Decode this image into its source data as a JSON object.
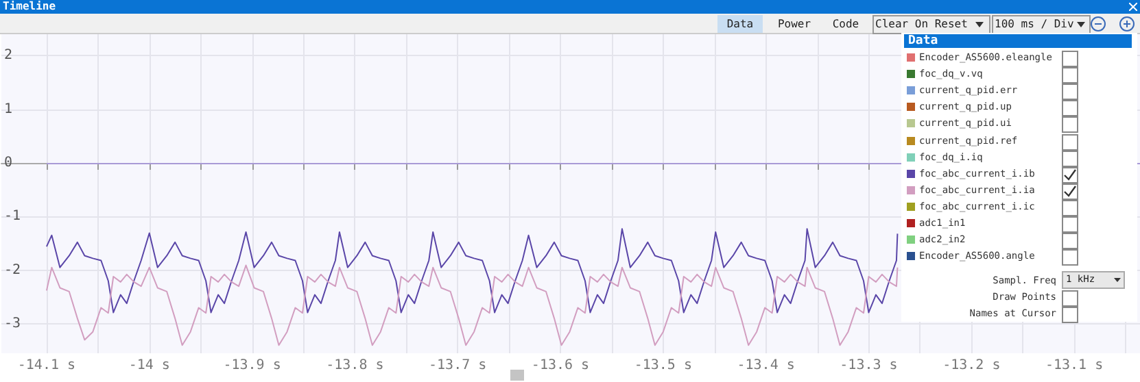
{
  "chart_data": {
    "type": "line",
    "title": "Timeline",
    "annotations": [
      "Data",
      "Power",
      "Code",
      "Clear On Reset",
      "100 ms / Div",
      "Data",
      "Sampl. Freq",
      "1 kHz",
      "Draw Points",
      "Names at Cursor"
    ],
    "x": [
      -14.1,
      -14.095,
      -14.087,
      -14.078,
      -14.07,
      -14.063,
      -14.055,
      -14.047,
      -14.04,
      -14.035,
      -14.028,
      -14.022,
      -14.015,
      -14.008,
      -14.0,
      -13.992,
      -13.983,
      -13.975,
      -13.968,
      -13.96,
      -13.952,
      -13.945,
      -13.94,
      -13.933,
      -13.927,
      -13.92,
      -13.913,
      -13.906,
      -13.898,
      -13.889,
      -13.881,
      -13.874,
      -13.866,
      -13.858,
      -13.851,
      -13.846,
      -13.839,
      -13.833,
      -13.826,
      -13.819,
      -13.815,
      -13.807,
      -13.798,
      -13.79,
      -13.783,
      -13.775,
      -13.767,
      -13.76,
      -13.755,
      -13.748,
      -13.742,
      -13.735,
      -13.728,
      -13.724,
      -13.716,
      -13.707,
      -13.699,
      -13.692,
      -13.684,
      -13.676,
      -13.669,
      -13.664,
      -13.657,
      -13.651,
      -13.644,
      -13.637,
      -13.631,
      -13.623,
      -13.614,
      -13.606,
      -13.599,
      -13.591,
      -13.583,
      -13.576,
      -13.571,
      -13.564,
      -13.558,
      -13.551,
      -13.544,
      -13.54,
      -13.532,
      -13.523,
      -13.515,
      -13.508,
      -13.5,
      -13.492,
      -13.485,
      -13.48,
      -13.473,
      -13.467,
      -13.46,
      -13.453,
      -13.449,
      -13.441,
      -13.432,
      -13.424,
      -13.417,
      -13.409,
      -13.401,
      -13.394,
      -13.389,
      -13.382,
      -13.376,
      -13.369,
      -13.362,
      -13.36,
      -13.352,
      -13.343,
      -13.335,
      -13.328,
      -13.32,
      -13.312,
      -13.305,
      -13.3,
      -13.293,
      -13.287,
      -13.28,
      -13.273,
      -13.272
    ],
    "series": [
      {
        "name": "Encoder_AS5600.eleangle",
        "color": "#e07070",
        "values": [
          null,
          null,
          null,
          null,
          null,
          null,
          null,
          null,
          null,
          null,
          null,
          null,
          null,
          null,
          null,
          null,
          null,
          null,
          null,
          null,
          null,
          null,
          null,
          null,
          null,
          null,
          null,
          null,
          null,
          null,
          null,
          null,
          null,
          null,
          null,
          null,
          null,
          null,
          null,
          null,
          null,
          null,
          null,
          null,
          null,
          null,
          null,
          null,
          null,
          null,
          null,
          null,
          null,
          null,
          null,
          null,
          null,
          null,
          null,
          null,
          null,
          null,
          null,
          null,
          null,
          null,
          null,
          null,
          null,
          null,
          null,
          null,
          null,
          null,
          null,
          null,
          null,
          null,
          null,
          null,
          null,
          null,
          null,
          null,
          null,
          null,
          null,
          null,
          null,
          null,
          null,
          null,
          null,
          null,
          null,
          null,
          null,
          null,
          null,
          null,
          null,
          null,
          null,
          null,
          null,
          null,
          null,
          null,
          null,
          null,
          null,
          null,
          null,
          null,
          null,
          null,
          null,
          null,
          null
        ]
      },
      {
        "name": "foc_dq_v.vq",
        "color": "#3a7a30",
        "values": [
          null,
          null,
          null,
          null,
          null,
          null,
          null,
          null,
          null,
          null,
          null,
          null,
          null,
          null,
          null,
          null,
          null,
          null,
          null,
          null,
          null,
          null,
          null,
          null,
          null,
          null,
          null,
          null,
          null,
          null,
          null,
          null,
          null,
          null,
          null,
          null,
          null,
          null,
          null,
          null,
          null,
          null,
          null,
          null,
          null,
          null,
          null,
          null,
          null,
          null,
          null,
          null,
          null,
          null,
          null,
          null,
          null,
          null,
          null,
          null,
          null,
          null,
          null,
          null,
          null,
          null,
          null,
          null,
          null,
          null,
          null,
          null,
          null,
          null,
          null,
          null,
          null,
          null,
          null,
          null,
          null,
          null,
          null,
          null,
          null,
          null,
          null,
          null,
          null,
          null,
          null,
          null,
          null,
          null,
          null,
          null,
          null,
          null,
          null,
          null,
          null,
          null,
          null,
          null,
          null,
          null,
          null,
          null,
          null,
          null,
          null,
          null,
          null,
          null,
          null,
          null,
          null,
          null,
          null
        ]
      },
      {
        "name": "current_q_pid.err",
        "color": "#7a9ed8",
        "values": [
          null,
          null,
          null,
          null,
          null,
          null,
          null,
          null,
          null,
          null,
          null,
          null,
          null,
          null,
          null,
          null,
          null,
          null,
          null,
          null,
          null,
          null,
          null,
          null,
          null,
          null,
          null,
          null,
          null,
          null,
          null,
          null,
          null,
          null,
          null,
          null,
          null,
          null,
          null,
          null,
          null,
          null,
          null,
          null,
          null,
          null,
          null,
          null,
          null,
          null,
          null,
          null,
          null,
          null,
          null,
          null,
          null,
          null,
          null,
          null,
          null,
          null,
          null,
          null,
          null,
          null,
          null,
          null,
          null,
          null,
          null,
          null,
          null,
          null,
          null,
          null,
          null,
          null,
          null,
          null,
          null,
          null,
          null,
          null,
          null,
          null,
          null,
          null,
          null,
          null,
          null,
          null,
          null,
          null,
          null,
          null,
          null,
          null,
          null,
          null,
          null,
          null,
          null,
          null,
          null,
          null,
          null,
          null,
          null,
          null,
          null,
          null,
          null,
          null,
          null,
          null,
          null,
          null,
          null
        ]
      },
      {
        "name": "current_q_pid.up",
        "color": "#b85a20",
        "values": [
          null,
          null,
          null,
          null,
          null,
          null,
          null,
          null,
          null,
          null,
          null,
          null,
          null,
          null,
          null,
          null,
          null,
          null,
          null,
          null,
          null,
          null,
          null,
          null,
          null,
          null,
          null,
          null,
          null,
          null,
          null,
          null,
          null,
          null,
          null,
          null,
          null,
          null,
          null,
          null,
          null,
          null,
          null,
          null,
          null,
          null,
          null,
          null,
          null,
          null,
          null,
          null,
          null,
          null,
          null,
          null,
          null,
          null,
          null,
          null,
          null,
          null,
          null,
          null,
          null,
          null,
          null,
          null,
          null,
          null,
          null,
          null,
          null,
          null,
          null,
          null,
          null,
          null,
          null,
          null,
          null,
          null,
          null,
          null,
          null,
          null,
          null,
          null,
          null,
          null,
          null,
          null,
          null,
          null,
          null,
          null,
          null,
          null,
          null,
          null,
          null,
          null,
          null,
          null,
          null,
          null,
          null,
          null,
          null,
          null,
          null,
          null,
          null,
          null,
          null,
          null,
          null,
          null,
          null
        ]
      },
      {
        "name": "current_q_pid.ui",
        "color": "#b8c890",
        "values": [
          null,
          null,
          null,
          null,
          null,
          null,
          null,
          null,
          null,
          null,
          null,
          null,
          null,
          null,
          null,
          null,
          null,
          null,
          null,
          null,
          null,
          null,
          null,
          null,
          null,
          null,
          null,
          null,
          null,
          null,
          null,
          null,
          null,
          null,
          null,
          null,
          null,
          null,
          null,
          null,
          null,
          null,
          null,
          null,
          null,
          null,
          null,
          null,
          null,
          null,
          null,
          null,
          null,
          null,
          null,
          null,
          null,
          null,
          null,
          null,
          null,
          null,
          null,
          null,
          null,
          null,
          null,
          null,
          null,
          null,
          null,
          null,
          null,
          null,
          null,
          null,
          null,
          null,
          null,
          null,
          null,
          null,
          null,
          null,
          null,
          null,
          null,
          null,
          null,
          null,
          null,
          null,
          null,
          null,
          null,
          null,
          null,
          null,
          null,
          null,
          null,
          null,
          null,
          null,
          null,
          null,
          null,
          null,
          null,
          null,
          null,
          null,
          null,
          null,
          null,
          null,
          null,
          null,
          null
        ]
      },
      {
        "name": "current_q_pid.ref",
        "color": "#b88a20",
        "values": [
          null,
          null,
          null,
          null,
          null,
          null,
          null,
          null,
          null,
          null,
          null,
          null,
          null,
          null,
          null,
          null,
          null,
          null,
          null,
          null,
          null,
          null,
          null,
          null,
          null,
          null,
          null,
          null,
          null,
          null,
          null,
          null,
          null,
          null,
          null,
          null,
          null,
          null,
          null,
          null,
          null,
          null,
          null,
          null,
          null,
          null,
          null,
          null,
          null,
          null,
          null,
          null,
          null,
          null,
          null,
          null,
          null,
          null,
          null,
          null,
          null,
          null,
          null,
          null,
          null,
          null,
          null,
          null,
          null,
          null,
          null,
          null,
          null,
          null,
          null,
          null,
          null,
          null,
          null,
          null,
          null,
          null,
          null,
          null,
          null,
          null,
          null,
          null,
          null,
          null,
          null,
          null,
          null,
          null,
          null,
          null,
          null,
          null,
          null,
          null,
          null,
          null,
          null,
          null,
          null,
          null,
          null,
          null,
          null,
          null,
          null,
          null,
          null,
          null,
          null,
          null,
          null,
          null,
          null
        ]
      },
      {
        "name": "foc_dq_i.iq",
        "color": "#80d0b8",
        "values": [
          null,
          null,
          null,
          null,
          null,
          null,
          null,
          null,
          null,
          null,
          null,
          null,
          null,
          null,
          null,
          null,
          null,
          null,
          null,
          null,
          null,
          null,
          null,
          null,
          null,
          null,
          null,
          null,
          null,
          null,
          null,
          null,
          null,
          null,
          null,
          null,
          null,
          null,
          null,
          null,
          null,
          null,
          null,
          null,
          null,
          null,
          null,
          null,
          null,
          null,
          null,
          null,
          null,
          null,
          null,
          null,
          null,
          null,
          null,
          null,
          null,
          null,
          null,
          null,
          null,
          null,
          null,
          null,
          null,
          null,
          null,
          null,
          null,
          null,
          null,
          null,
          null,
          null,
          null,
          null,
          null,
          null,
          null,
          null,
          null,
          null,
          null,
          null,
          null,
          null,
          null,
          null,
          null,
          null,
          null,
          null,
          null,
          null,
          null,
          null,
          null,
          null,
          null,
          null,
          null,
          null,
          null,
          null,
          null,
          null,
          null,
          null,
          null,
          null,
          null,
          null,
          null,
          null,
          null
        ]
      },
      {
        "name": "foc_abc_current_i.ib",
        "color": "#5a46a8",
        "values": [
          -1.56,
          -1.35,
          -1.95,
          -1.73,
          -1.48,
          -1.73,
          -1.78,
          -1.82,
          -2.2,
          -2.79,
          -2.46,
          -2.62,
          -2.2,
          -1.82,
          -1.31,
          -1.95,
          -1.73,
          -1.48,
          -1.73,
          -1.78,
          -1.82,
          -2.2,
          -2.79,
          -2.46,
          -2.62,
          -2.2,
          -1.82,
          -1.29,
          -1.95,
          -1.73,
          -1.48,
          -1.73,
          -1.78,
          -1.82,
          -2.2,
          -2.79,
          -2.46,
          -2.62,
          -2.2,
          -1.82,
          -1.29,
          -1.95,
          -1.73,
          -1.48,
          -1.73,
          -1.78,
          -1.82,
          -2.2,
          -2.79,
          -2.46,
          -2.62,
          -2.2,
          -1.82,
          -1.29,
          -1.95,
          -1.73,
          -1.48,
          -1.73,
          -1.78,
          -1.82,
          -2.2,
          -2.79,
          -2.46,
          -2.62,
          -2.2,
          -1.82,
          -1.35,
          -1.95,
          -1.73,
          -1.48,
          -1.73,
          -1.78,
          -1.82,
          -2.2,
          -2.79,
          -2.46,
          -2.62,
          -2.2,
          -1.82,
          -1.23,
          -1.95,
          -1.73,
          -1.48,
          -1.73,
          -1.78,
          -1.82,
          -2.2,
          -2.79,
          -2.46,
          -2.62,
          -2.2,
          -1.82,
          -1.29,
          -1.95,
          -1.73,
          -1.48,
          -1.73,
          -1.78,
          -1.82,
          -2.2,
          -2.79,
          -2.46,
          -2.62,
          -2.2,
          -1.82,
          -1.23,
          -1.95,
          -1.73,
          -1.48,
          -1.73,
          -1.78,
          -1.82,
          -2.2,
          -2.79,
          -2.46,
          -2.62,
          -2.2,
          -1.82,
          -1.32
        ]
      },
      {
        "name": "foc_abc_current_i.ia",
        "color": "#d29ec0",
        "values": [
          -2.38,
          -1.95,
          -2.33,
          -2.4,
          -2.9,
          -3.3,
          -3.15,
          -2.7,
          -2.8,
          -2.12,
          -2.22,
          -2.08,
          -2.22,
          -2.3,
          -1.95,
          -2.33,
          -2.4,
          -2.9,
          -3.4,
          -3.15,
          -2.7,
          -2.8,
          -2.12,
          -2.22,
          -2.08,
          -2.22,
          -2.3,
          -1.91,
          -2.33,
          -2.4,
          -2.9,
          -3.4,
          -3.15,
          -2.7,
          -2.8,
          -2.12,
          -2.22,
          -2.08,
          -2.22,
          -2.3,
          -1.95,
          -2.33,
          -2.4,
          -2.9,
          -3.4,
          -3.15,
          -2.7,
          -2.8,
          -2.12,
          -2.22,
          -2.08,
          -2.22,
          -2.3,
          -1.95,
          -2.33,
          -2.4,
          -2.9,
          -3.4,
          -3.15,
          -2.7,
          -2.8,
          -2.12,
          -2.22,
          -2.08,
          -2.22,
          -2.3,
          -1.95,
          -2.33,
          -2.4,
          -2.9,
          -3.4,
          -3.15,
          -2.7,
          -2.8,
          -2.12,
          -2.22,
          -2.08,
          -2.22,
          -2.3,
          -1.95,
          -2.33,
          -2.4,
          -2.9,
          -3.4,
          -3.15,
          -2.7,
          -2.8,
          -2.12,
          -2.22,
          -2.08,
          -2.22,
          -2.3,
          -1.95,
          -2.33,
          -2.4,
          -2.9,
          -3.4,
          -3.15,
          -2.7,
          -2.8,
          -2.12,
          -2.22,
          -2.08,
          -2.22,
          -2.3,
          -1.95,
          -2.33,
          -2.4,
          -2.9,
          -3.4,
          -3.15,
          -2.7,
          -2.8,
          -2.12,
          -2.22,
          -2.08,
          -2.22,
          -2.3,
          -1.95
        ]
      },
      {
        "name": "foc_abc_current_i.ic",
        "color": "#a0a020",
        "values": [
          null,
          null,
          null,
          null,
          null,
          null,
          null,
          null,
          null,
          null,
          null,
          null,
          null,
          null,
          null,
          null,
          null,
          null,
          null,
          null,
          null,
          null,
          null,
          null,
          null,
          null,
          null,
          null,
          null,
          null,
          null,
          null,
          null,
          null,
          null,
          null,
          null,
          null,
          null,
          null,
          null,
          null,
          null,
          null,
          null,
          null,
          null,
          null,
          null,
          null,
          null,
          null,
          null,
          null,
          null,
          null,
          null,
          null,
          null,
          null,
          null,
          null,
          null,
          null,
          null,
          null,
          null,
          null,
          null,
          null,
          null,
          null,
          null,
          null,
          null,
          null,
          null,
          null,
          null,
          null,
          null,
          null,
          null,
          null,
          null,
          null,
          null,
          null,
          null,
          null,
          null,
          null,
          null,
          null,
          null,
          null,
          null,
          null,
          null,
          null,
          null,
          null,
          null,
          null,
          null,
          null,
          null,
          null,
          null,
          null,
          null,
          null,
          null,
          null,
          null,
          null,
          null,
          null,
          null
        ]
      },
      {
        "name": "adc1_in1",
        "color": "#b02020",
        "values": [
          null,
          null,
          null,
          null,
          null,
          null,
          null,
          null,
          null,
          null,
          null,
          null,
          null,
          null,
          null,
          null,
          null,
          null,
          null,
          null,
          null,
          null,
          null,
          null,
          null,
          null,
          null,
          null,
          null,
          null,
          null,
          null,
          null,
          null,
          null,
          null,
          null,
          null,
          null,
          null,
          null,
          null,
          null,
          null,
          null,
          null,
          null,
          null,
          null,
          null,
          null,
          null,
          null,
          null,
          null,
          null,
          null,
          null,
          null,
          null,
          null,
          null,
          null,
          null,
          null,
          null,
          null,
          null,
          null,
          null,
          null,
          null,
          null,
          null,
          null,
          null,
          null,
          null,
          null,
          null,
          null,
          null,
          null,
          null,
          null,
          null,
          null,
          null,
          null,
          null,
          null,
          null,
          null,
          null,
          null,
          null,
          null,
          null,
          null,
          null,
          null,
          null,
          null,
          null,
          null,
          null,
          null,
          null,
          null,
          null,
          null,
          null,
          null,
          null,
          null,
          null,
          null,
          null,
          null
        ]
      },
      {
        "name": "adc2_in2",
        "color": "#80d080",
        "values": [
          null,
          null,
          null,
          null,
          null,
          null,
          null,
          null,
          null,
          null,
          null,
          null,
          null,
          null,
          null,
          null,
          null,
          null,
          null,
          null,
          null,
          null,
          null,
          null,
          null,
          null,
          null,
          null,
          null,
          null,
          null,
          null,
          null,
          null,
          null,
          null,
          null,
          null,
          null,
          null,
          null,
          null,
          null,
          null,
          null,
          null,
          null,
          null,
          null,
          null,
          null,
          null,
          null,
          null,
          null,
          null,
          null,
          null,
          null,
          null,
          null,
          null,
          null,
          null,
          null,
          null,
          null,
          null,
          null,
          null,
          null,
          null,
          null,
          null,
          null,
          null,
          null,
          null,
          null,
          null,
          null,
          null,
          null,
          null,
          null,
          null,
          null,
          null,
          null,
          null,
          null,
          null,
          null,
          null,
          null,
          null,
          null,
          null,
          null,
          null,
          null,
          null,
          null,
          null,
          null,
          null,
          null,
          null,
          null,
          null,
          null,
          null,
          null,
          null,
          null,
          null,
          null,
          null,
          null
        ]
      },
      {
        "name": "Encoder_AS5600.angle",
        "color": "#2a5090",
        "values": [
          null,
          null,
          null,
          null,
          null,
          null,
          null,
          null,
          null,
          null,
          null,
          null,
          null,
          null,
          null,
          null,
          null,
          null,
          null,
          null,
          null,
          null,
          null,
          null,
          null,
          null,
          null,
          null,
          null,
          null,
          null,
          null,
          null,
          null,
          null,
          null,
          null,
          null,
          null,
          null,
          null,
          null,
          null,
          null,
          null,
          null,
          null,
          null,
          null,
          null,
          null,
          null,
          null,
          null,
          null,
          null,
          null,
          null,
          null,
          null,
          null,
          null,
          null,
          null,
          null,
          null,
          null,
          null,
          null,
          null,
          null,
          null,
          null,
          null,
          null,
          null,
          null,
          null,
          null,
          null,
          null,
          null,
          null,
          null,
          null,
          null,
          null,
          null,
          null,
          null,
          null,
          null,
          null,
          null,
          null,
          null,
          null,
          null,
          null,
          null,
          null,
          null,
          null,
          null,
          null,
          null,
          null,
          null,
          null,
          null,
          null,
          null,
          null,
          null,
          null,
          null,
          null,
          null,
          null
        ]
      }
    ],
    "xlim": [
      -14.144,
      -13.036
    ],
    "xticks": [
      {
        "value": -14.1,
        "label": "-14.1 s"
      },
      {
        "value": -14.05,
        "label": null
      },
      {
        "value": -14.0,
        "label": "-14 s"
      },
      {
        "value": -13.95,
        "label": null
      },
      {
        "value": -13.9,
        "label": "-13.9 s"
      },
      {
        "value": -13.85,
        "label": null
      },
      {
        "value": -13.8,
        "label": "-13.8 s"
      },
      {
        "value": -13.75,
        "label": null
      },
      {
        "value": -13.7,
        "label": "-13.7 s"
      },
      {
        "value": -13.65,
        "label": null
      },
      {
        "value": -13.6,
        "label": "-13.6 s"
      },
      {
        "value": -13.55,
        "label": null
      },
      {
        "value": -13.5,
        "label": "-13.5 s"
      },
      {
        "value": -13.45,
        "label": null
      },
      {
        "value": -13.4,
        "label": "-13.4 s"
      },
      {
        "value": -13.35,
        "label": null
      },
      {
        "value": -13.3,
        "label": "-13.3 s"
      },
      {
        "value": -13.25,
        "label": null
      },
      {
        "value": -13.2,
        "label": "-13.2 s"
      },
      {
        "value": -13.15,
        "label": null
      },
      {
        "value": -13.1,
        "label": "-13.1 s"
      },
      {
        "value": -13.05,
        "label": null
      }
    ],
    "ylim": [
      -3.55,
      2.4
    ],
    "yticks": [
      -3,
      -2,
      -1,
      0,
      1,
      2
    ],
    "ref_lines": [
      {
        "axis": "y",
        "value": 0,
        "label": null,
        "color": "#a99ad6"
      }
    ],
    "grid": true,
    "legend": "top right",
    "marker": "none"
  }
}
